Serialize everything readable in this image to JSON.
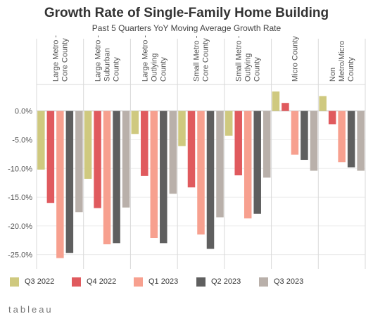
{
  "chart_data": {
    "type": "bar",
    "title": "Growth Rate of Single-Family Home Building",
    "subtitle": "Past 5 Quarters YoY Moving Average Growth Rate",
    "categories": [
      "Large Metro - Core County",
      "Large Metro - Suburban County",
      "Large Metro - Outlying County",
      "Small Metro - Core County",
      "Small Metro - Outlying County",
      "Micro County",
      "Non Metro/Micro County"
    ],
    "category_label_lines": [
      [
        "Large Metro -",
        "Core County"
      ],
      [
        "Large Metro -",
        "Suburban",
        "County"
      ],
      [
        "Large Metro -",
        "Outlying",
        "County"
      ],
      [
        "Small Metro -",
        "Core County"
      ],
      [
        "Small Metro -",
        "Outlying",
        "County"
      ],
      [
        "Micro County"
      ],
      [
        "Non",
        "Metro/Micro",
        "County"
      ]
    ],
    "series": [
      {
        "name": "Q3 2022",
        "color": "#cfc97f",
        "values": [
          -10.2,
          -11.8,
          -4.0,
          -6.1,
          -4.3,
          3.4,
          2.6
        ]
      },
      {
        "name": "Q4 2022",
        "color": "#e05a5e",
        "values": [
          -16.0,
          -16.9,
          -11.3,
          -13.3,
          -11.2,
          1.4,
          -2.3
        ]
      },
      {
        "name": "Q1 2023",
        "color": "#f7a08f",
        "values": [
          -25.6,
          -23.2,
          -22.1,
          -21.5,
          -18.7,
          -7.6,
          -8.9
        ]
      },
      {
        "name": "Q2 2023",
        "color": "#5f5f5f",
        "values": [
          -24.7,
          -23.0,
          -23.0,
          -24.0,
          -17.9,
          -8.5,
          -9.8
        ]
      },
      {
        "name": "Q3 2023",
        "color": "#b9b0aa",
        "values": [
          -17.6,
          -16.8,
          -14.4,
          -18.5,
          -11.6,
          -10.4,
          -10.4
        ]
      }
    ],
    "yaxis": {
      "ticks": [
        0,
        -5,
        -10,
        -15,
        -20,
        -25
      ],
      "tick_labels": [
        "0.0%",
        "-5.0%",
        "-10.0%",
        "-15.0%",
        "-20.0%",
        "-25.0%"
      ],
      "ylim": [
        -27,
        4
      ]
    },
    "grid": true,
    "legend_position": "bottom"
  },
  "brand": "tableau"
}
